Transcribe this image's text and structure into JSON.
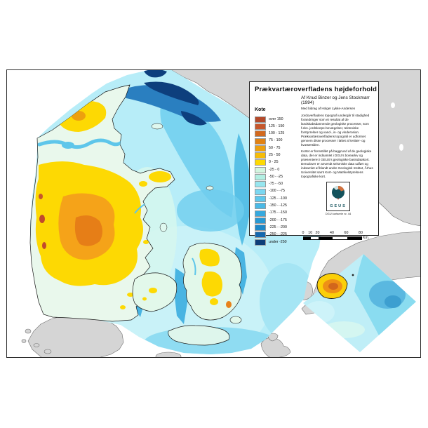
{
  "legend": {
    "title": "Prækvartæroverfladens højdeforhold",
    "author_line": "Af Knud Binzer og Jens Stockmarr (1994)",
    "contrib_line": "Med bidrag af Holger Lykke-Andersen",
    "column_header": "Kote",
    "rows": [
      {
        "label": "over 150",
        "color": "#b44a2b"
      },
      {
        "label": "125 - 150",
        "color": "#c6572c"
      },
      {
        "label": "100 - 125",
        "color": "#d2691f"
      },
      {
        "label": "75 - 100",
        "color": "#e18214"
      },
      {
        "label": "50 - 75",
        "color": "#eda00e"
      },
      {
        "label": "25 - 50",
        "color": "#f5bc0a"
      },
      {
        "label": "0 - 25",
        "color": "#fdd903"
      },
      {
        "label": "-25 - 0",
        "color": "#d3f6e0"
      },
      {
        "label": "-50 - -25",
        "color": "#b2efe2"
      },
      {
        "label": "-75 - -50",
        "color": "#97e6ef"
      },
      {
        "label": "-100 - -75",
        "color": "#7bd7f1"
      },
      {
        "label": "-125 - -100",
        "color": "#5fc8ec"
      },
      {
        "label": "-150 - -125",
        "color": "#4ab9e6"
      },
      {
        "label": "-175 - -150",
        "color": "#37a9de"
      },
      {
        "label": "-200 - -175",
        "color": "#2899d4"
      },
      {
        "label": "-225 - -200",
        "color": "#1e88c8"
      },
      {
        "label": "-250 - -225",
        "color": "#1568ae"
      },
      {
        "label": "under -250",
        "color": "#0d3e79"
      }
    ],
    "paragraph1": "Jordoverfladens topografi undergår til stadighed forandringer som et resultat af de landskabsdannende geologiske processer, som f.eks. jordskorpe-bevægelser, tektoniske forstyrrelser og vand-, is- og vinderosion. Prækvartæroverfladens topografi er udformet gennem disse processer i løbet af tertiær- og kvartærtiden.",
    "paragraph2": "Kortet er fremstillet på baggrund af de geologiske data, der er indsamlet i DGU's borearkiv og præsenteret i GEUS's geologiske basisdatakort. Derudover er anvendt seismiske data udført og indsamlet af blandt andre Geologisk Institut, Århus Universitet samt Kort- og Matrikelstyrelsens topografiske kort.",
    "logo_text": "GEUS",
    "logo_caption": "DGU kortserie nr. 44",
    "scale_bar": {
      "ticks": [
        "0",
        "10",
        "20",
        "40",
        "60",
        "80"
      ],
      "unit": "Km."
    }
  },
  "map_colors": {
    "neighbor_land": "#d5d5d5",
    "sea_no_data": "#ffffff",
    "shallow_sea": "#b7edf8",
    "deep_trench": "#0d3f7d",
    "high_ground": "#fdd903",
    "frame": "#2b2b2b"
  }
}
